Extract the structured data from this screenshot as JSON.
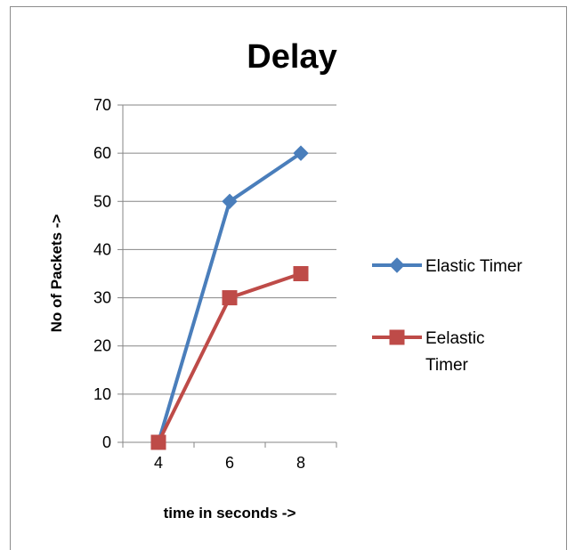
{
  "chart_data": {
    "type": "line",
    "title": "Delay",
    "xlabel": "time in seconds ->",
    "ylabel": "No of  Packets ->",
    "categories": [
      "4",
      "6",
      "8"
    ],
    "ylim": [
      0,
      70
    ],
    "yticks": [
      "0",
      "10",
      "20",
      "30",
      "40",
      "50",
      "60",
      "70"
    ],
    "grid": true,
    "legend_position": "right",
    "series": [
      {
        "name": "Elastic Timer",
        "values": [
          0,
          50,
          60
        ],
        "color": "#4a7ebb",
        "marker": "diamond"
      },
      {
        "name": "Eelastic Timer",
        "values": [
          0,
          30,
          35
        ],
        "color": "#be4b48",
        "marker": "square"
      }
    ],
    "legend_lines": [
      [
        "Elastic Timer"
      ],
      [
        "Eelastic",
        "Timer"
      ]
    ]
  }
}
